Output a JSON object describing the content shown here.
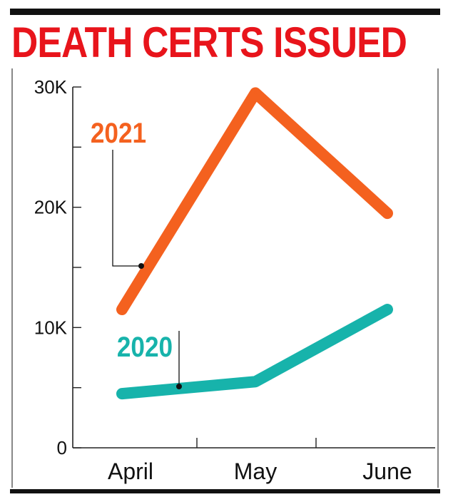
{
  "title": "DEATH CERTS ISSUED",
  "chart_data": {
    "type": "line",
    "title": "DEATH CERTS ISSUED",
    "categories": [
      "April",
      "May",
      "June"
    ],
    "ylim": [
      0,
      30000
    ],
    "yticks": [
      {
        "value": 0,
        "label": "0"
      },
      {
        "value": 10000,
        "label": "10K"
      },
      {
        "value": 20000,
        "label": "20K"
      },
      {
        "value": 30000,
        "label": "30K"
      }
    ],
    "minor_ytick_values": [
      5000,
      15000,
      25000
    ],
    "grid": false,
    "legend": "none (series labelled directly with callouts)",
    "series": [
      {
        "name": "2021",
        "color": "#f4611f",
        "values": [
          11500,
          29500,
          19500
        ]
      },
      {
        "name": "2020",
        "color": "#17b3ab",
        "values": [
          4500,
          5500,
          11500
        ]
      }
    ]
  }
}
